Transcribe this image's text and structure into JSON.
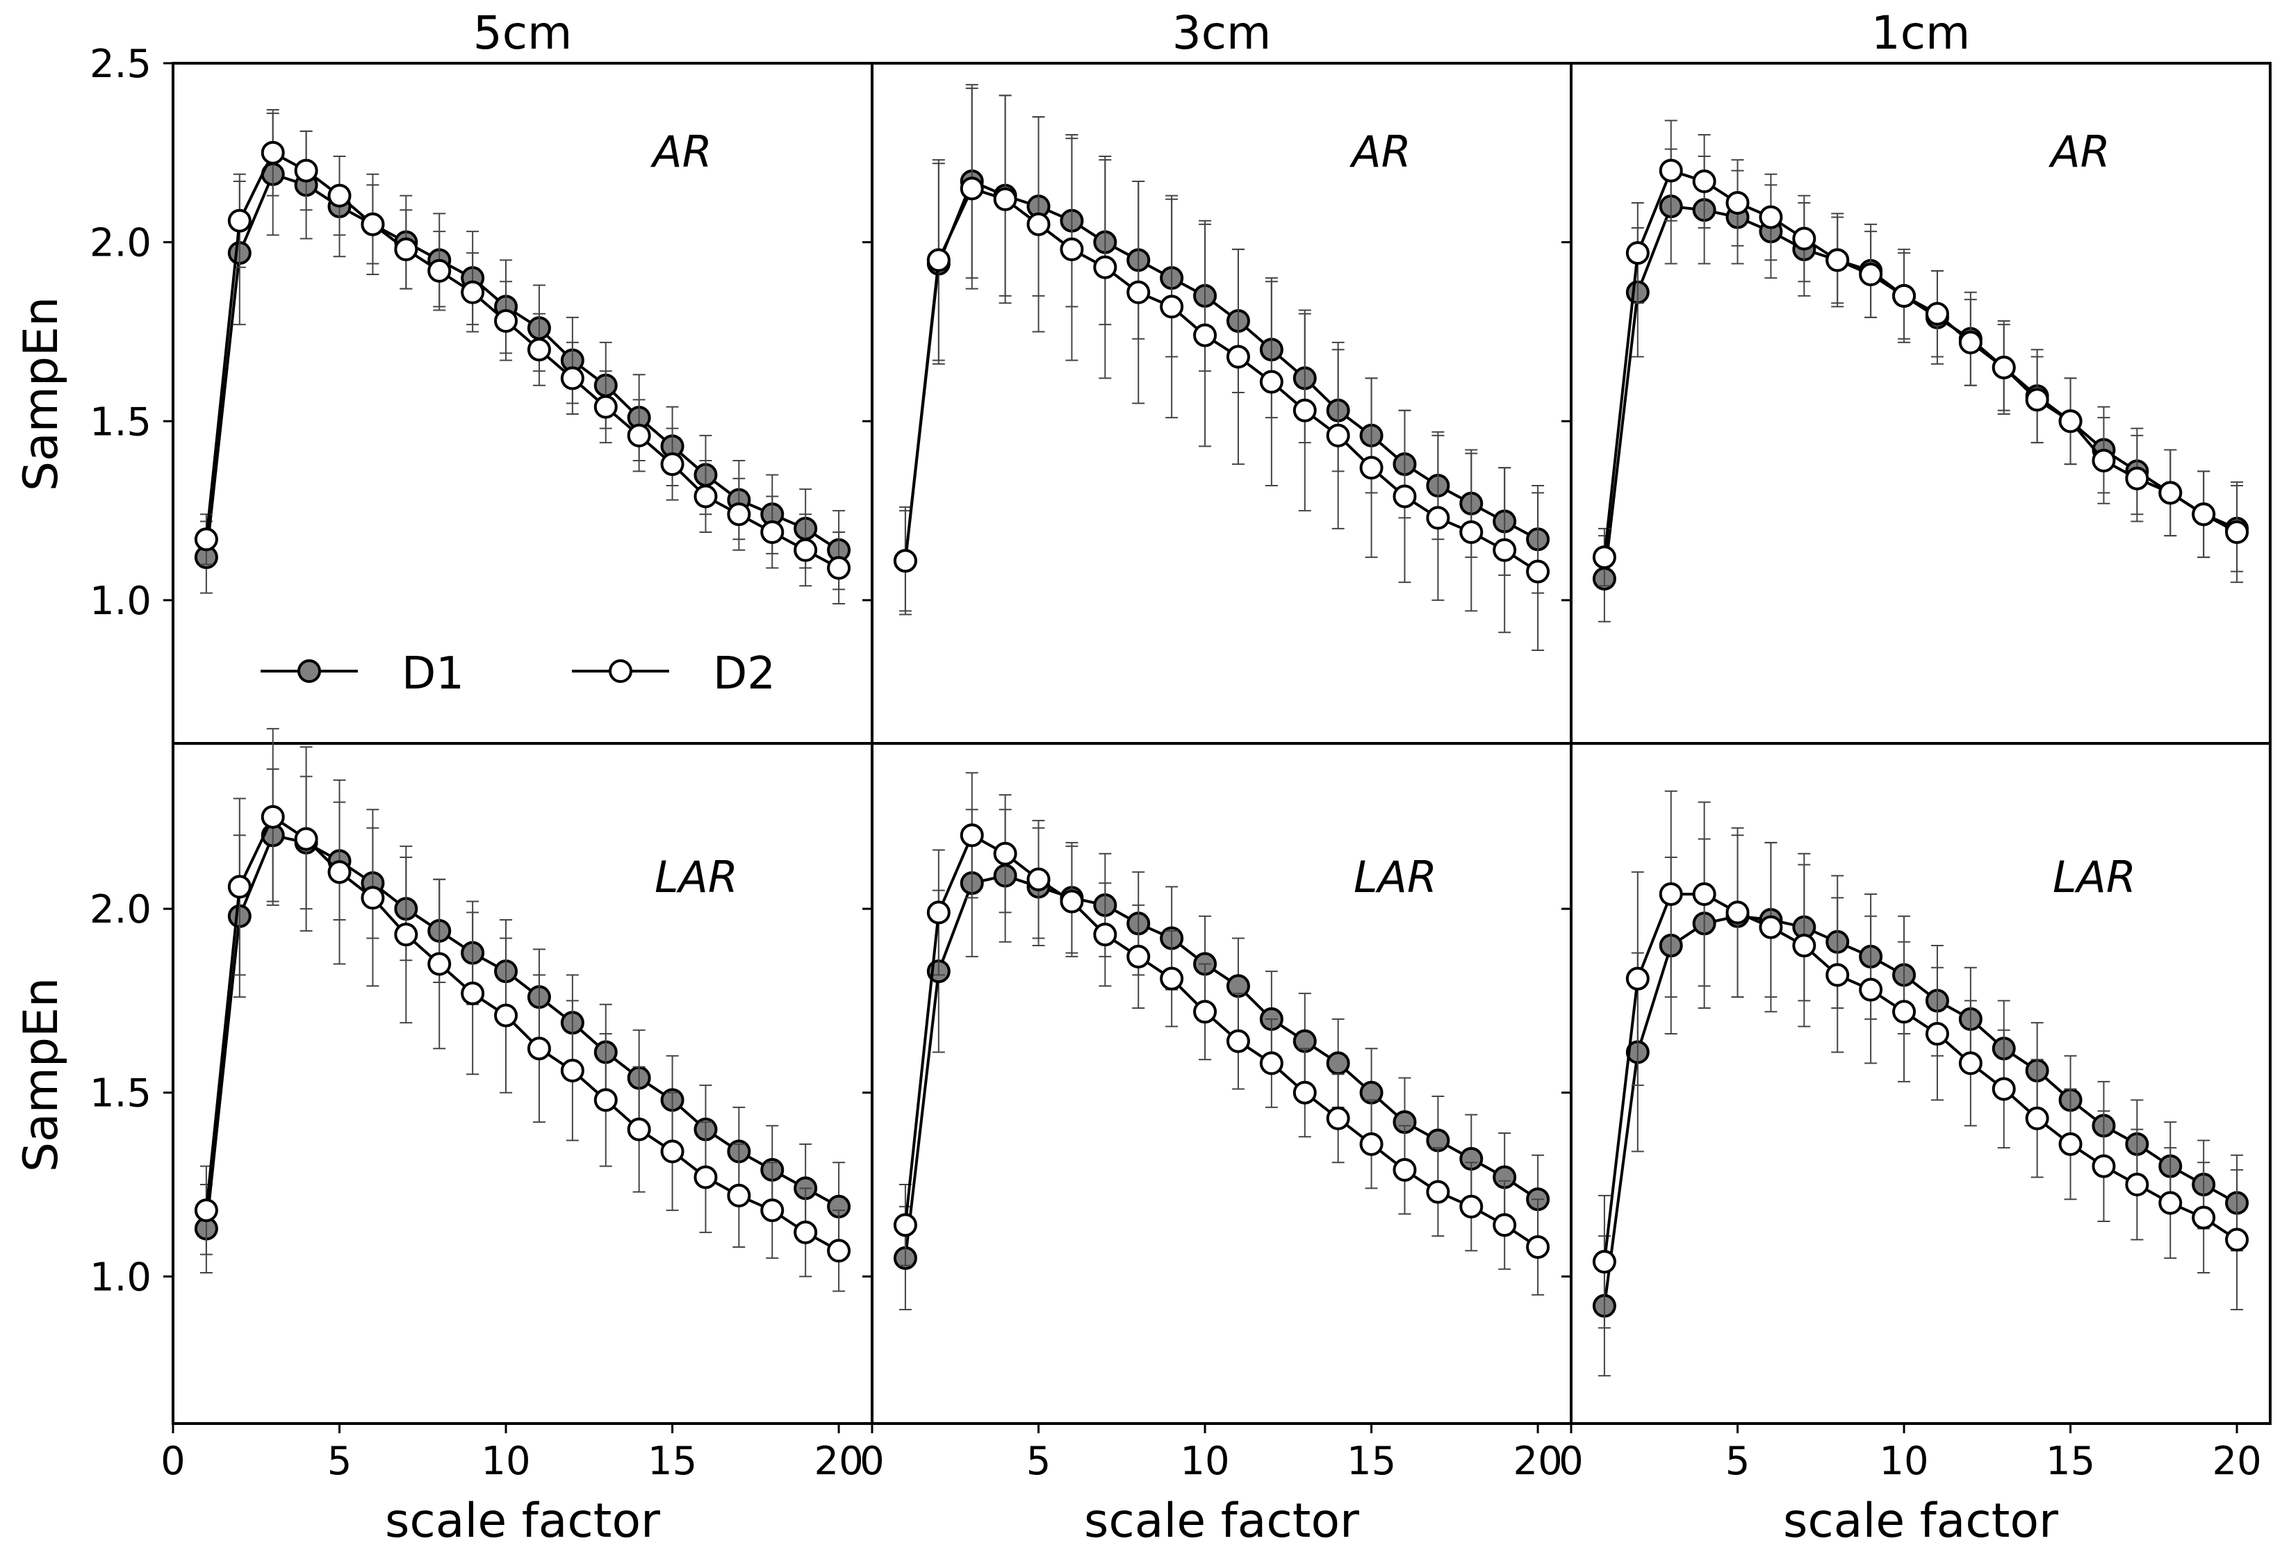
{
  "chart_data": {
    "type": "line",
    "layout": "2 rows x 3 columns, shared axes",
    "column_titles": [
      "5cm",
      "3cm",
      "1cm"
    ],
    "row_labels": [
      "AR",
      "LAR"
    ],
    "xlabel": "scale factor",
    "ylabel": "SampEn",
    "xlim": [
      0,
      21
    ],
    "ylim_top_row": [
      0.6,
      2.5
    ],
    "ylim_bottom_row": [
      0.6,
      2.45
    ],
    "x_ticks": [
      0,
      5,
      10,
      15,
      20
    ],
    "x_tick_labels": [
      "0",
      "5",
      "10",
      "15",
      "20"
    ],
    "y_ticks_top_row": [
      1.0,
      1.5,
      2.0,
      2.5
    ],
    "y_tick_labels_top_row": [
      "1.0",
      "1.5",
      "2.0",
      "2.5"
    ],
    "y_ticks_bottom_row": [
      1.0,
      1.5,
      2.0
    ],
    "y_tick_labels_bottom_row": [
      "1.0",
      "1.5",
      "2.0"
    ],
    "legend": [
      {
        "name": "D1",
        "marker": "filled-circle",
        "fill": "#808080"
      },
      {
        "name": "D2",
        "marker": "open-circle",
        "fill": "#ffffff"
      }
    ],
    "legend_location": "lower-left of top-left panel",
    "x": [
      1,
      2,
      3,
      4,
      5,
      6,
      7,
      8,
      9,
      10,
      11,
      12,
      13,
      14,
      15,
      16,
      17,
      18,
      19,
      20
    ],
    "panels": [
      {
        "row": 0,
        "col": 0,
        "label": "AR",
        "series": [
          {
            "name": "D1",
            "values": [
              1.12,
              1.97,
              2.19,
              2.16,
              2.1,
              2.05,
              2.0,
              1.95,
              1.9,
              1.82,
              1.76,
              1.67,
              1.6,
              1.51,
              1.43,
              1.35,
              1.28,
              1.24,
              1.2,
              1.14
            ],
            "err": [
              0.1,
              0.2,
              0.17,
              0.15,
              0.14,
              0.14,
              0.13,
              0.13,
              0.13,
              0.13,
              0.12,
              0.12,
              0.12,
              0.12,
              0.11,
              0.11,
              0.11,
              0.11,
              0.11,
              0.11
            ]
          },
          {
            "name": "D2",
            "values": [
              1.17,
              2.06,
              2.25,
              2.2,
              2.13,
              2.05,
              1.98,
              1.92,
              1.86,
              1.78,
              1.7,
              1.62,
              1.54,
              1.46,
              1.38,
              1.29,
              1.24,
              1.19,
              1.14,
              1.09
            ],
            "err": [
              0.07,
              0.13,
              0.12,
              0.11,
              0.11,
              0.11,
              0.11,
              0.11,
              0.11,
              0.11,
              0.1,
              0.1,
              0.1,
              0.1,
              0.1,
              0.1,
              0.1,
              0.1,
              0.1,
              0.1
            ]
          }
        ]
      },
      {
        "row": 0,
        "col": 1,
        "label": "AR",
        "series": [
          {
            "name": "D1",
            "values": [
              1.11,
              1.94,
              2.17,
              2.13,
              2.1,
              2.06,
              2.0,
              1.95,
              1.9,
              1.85,
              1.78,
              1.7,
              1.62,
              1.53,
              1.46,
              1.38,
              1.32,
              1.27,
              1.22,
              1.17
            ],
            "err": [
              0.15,
              0.28,
              0.27,
              0.28,
              0.25,
              0.24,
              0.23,
              0.22,
              0.22,
              0.21,
              0.2,
              0.19,
              0.18,
              0.17,
              0.16,
              0.15,
              0.15,
              0.15,
              0.15,
              0.15
            ]
          },
          {
            "name": "D2",
            "values": [
              1.11,
              1.95,
              2.15,
              2.12,
              2.05,
              1.98,
              1.93,
              1.86,
              1.82,
              1.74,
              1.68,
              1.61,
              1.53,
              1.46,
              1.37,
              1.29,
              1.23,
              1.19,
              1.14,
              1.08
            ],
            "err": [
              0.14,
              0.28,
              0.28,
              0.29,
              0.3,
              0.31,
              0.31,
              0.31,
              0.31,
              0.31,
              0.3,
              0.29,
              0.28,
              0.26,
              0.25,
              0.24,
              0.23,
              0.22,
              0.23,
              0.22
            ]
          }
        ]
      },
      {
        "row": 0,
        "col": 2,
        "label": "AR",
        "series": [
          {
            "name": "D1",
            "values": [
              1.06,
              1.86,
              2.1,
              2.09,
              2.07,
              2.03,
              1.98,
              1.95,
              1.92,
              1.85,
              1.79,
              1.73,
              1.65,
              1.57,
              1.5,
              1.42,
              1.36,
              1.3,
              1.24,
              1.2
            ],
            "err": [
              0.12,
              0.18,
              0.16,
              0.15,
              0.13,
              0.13,
              0.13,
              0.13,
              0.13,
              0.13,
              0.13,
              0.13,
              0.13,
              0.13,
              0.12,
              0.12,
              0.12,
              0.12,
              0.12,
              0.12
            ]
          },
          {
            "name": "D2",
            "values": [
              1.12,
              1.97,
              2.2,
              2.17,
              2.11,
              2.07,
              2.01,
              1.95,
              1.91,
              1.85,
              1.8,
              1.72,
              1.65,
              1.56,
              1.5,
              1.39,
              1.34,
              1.3,
              1.24,
              1.19
            ],
            "err": [
              0.08,
              0.14,
              0.14,
              0.13,
              0.12,
              0.12,
              0.12,
              0.12,
              0.12,
              0.12,
              0.12,
              0.12,
              0.12,
              0.12,
              0.12,
              0.12,
              0.12,
              0.12,
              0.12,
              0.14
            ]
          }
        ]
      },
      {
        "row": 1,
        "col": 0,
        "label": "LAR",
        "series": [
          {
            "name": "D1",
            "values": [
              1.13,
              1.98,
              2.2,
              2.18,
              2.13,
              2.07,
              2.0,
              1.94,
              1.88,
              1.83,
              1.76,
              1.69,
              1.61,
              1.54,
              1.48,
              1.4,
              1.34,
              1.29,
              1.24,
              1.19
            ],
            "err": [
              0.12,
              0.22,
              0.18,
              0.18,
              0.16,
              0.15,
              0.14,
              0.14,
              0.14,
              0.14,
              0.13,
              0.13,
              0.13,
              0.13,
              0.12,
              0.12,
              0.12,
              0.12,
              0.12,
              0.12
            ]
          },
          {
            "name": "D2",
            "values": [
              1.18,
              2.06,
              2.25,
              2.19,
              2.1,
              2.03,
              1.93,
              1.85,
              1.77,
              1.71,
              1.62,
              1.56,
              1.48,
              1.4,
              1.34,
              1.27,
              1.22,
              1.18,
              1.12,
              1.07
            ],
            "err": [
              0.12,
              0.24,
              0.24,
              0.25,
              0.25,
              0.24,
              0.24,
              0.23,
              0.22,
              0.21,
              0.2,
              0.19,
              0.18,
              0.17,
              0.16,
              0.15,
              0.14,
              0.13,
              0.12,
              0.11
            ]
          }
        ]
      },
      {
        "row": 1,
        "col": 1,
        "label": "LAR",
        "series": [
          {
            "name": "D1",
            "values": [
              1.05,
              1.83,
              2.07,
              2.09,
              2.06,
              2.03,
              2.01,
              1.96,
              1.92,
              1.85,
              1.79,
              1.7,
              1.64,
              1.58,
              1.5,
              1.42,
              1.37,
              1.32,
              1.27,
              1.21
            ],
            "err": [
              0.14,
              0.22,
              0.2,
              0.18,
              0.16,
              0.15,
              0.14,
              0.14,
              0.14,
              0.13,
              0.13,
              0.13,
              0.13,
              0.12,
              0.12,
              0.12,
              0.12,
              0.12,
              0.12,
              0.12
            ]
          },
          {
            "name": "D2",
            "values": [
              1.14,
              1.99,
              2.2,
              2.15,
              2.08,
              2.02,
              1.93,
              1.87,
              1.81,
              1.72,
              1.64,
              1.58,
              1.5,
              1.43,
              1.36,
              1.29,
              1.23,
              1.19,
              1.14,
              1.08
            ],
            "err": [
              0.11,
              0.17,
              0.17,
              0.16,
              0.16,
              0.15,
              0.14,
              0.14,
              0.13,
              0.13,
              0.13,
              0.12,
              0.12,
              0.12,
              0.12,
              0.12,
              0.12,
              0.12,
              0.12,
              0.13
            ]
          }
        ]
      },
      {
        "row": 1,
        "col": 2,
        "label": "LAR",
        "series": [
          {
            "name": "D1",
            "values": [
              0.92,
              1.61,
              1.9,
              1.96,
              1.98,
              1.97,
              1.95,
              1.91,
              1.87,
              1.82,
              1.75,
              1.7,
              1.62,
              1.56,
              1.48,
              1.41,
              1.36,
              1.3,
              1.25,
              1.2
            ],
            "err": [
              0.19,
              0.27,
              0.24,
              0.23,
              0.22,
              0.21,
              0.2,
              0.18,
              0.17,
              0.16,
              0.15,
              0.14,
              0.13,
              0.13,
              0.12,
              0.12,
              0.12,
              0.12,
              0.12,
              0.13
            ]
          },
          {
            "name": "D2",
            "values": [
              1.04,
              1.81,
              2.04,
              2.04,
              1.99,
              1.95,
              1.9,
              1.82,
              1.78,
              1.72,
              1.66,
              1.58,
              1.51,
              1.43,
              1.36,
              1.3,
              1.25,
              1.2,
              1.16,
              1.1
            ],
            "err": [
              0.18,
              0.29,
              0.28,
              0.25,
              0.23,
              0.23,
              0.22,
              0.21,
              0.2,
              0.19,
              0.18,
              0.17,
              0.16,
              0.16,
              0.15,
              0.15,
              0.15,
              0.15,
              0.15,
              0.19
            ]
          }
        ]
      }
    ]
  }
}
